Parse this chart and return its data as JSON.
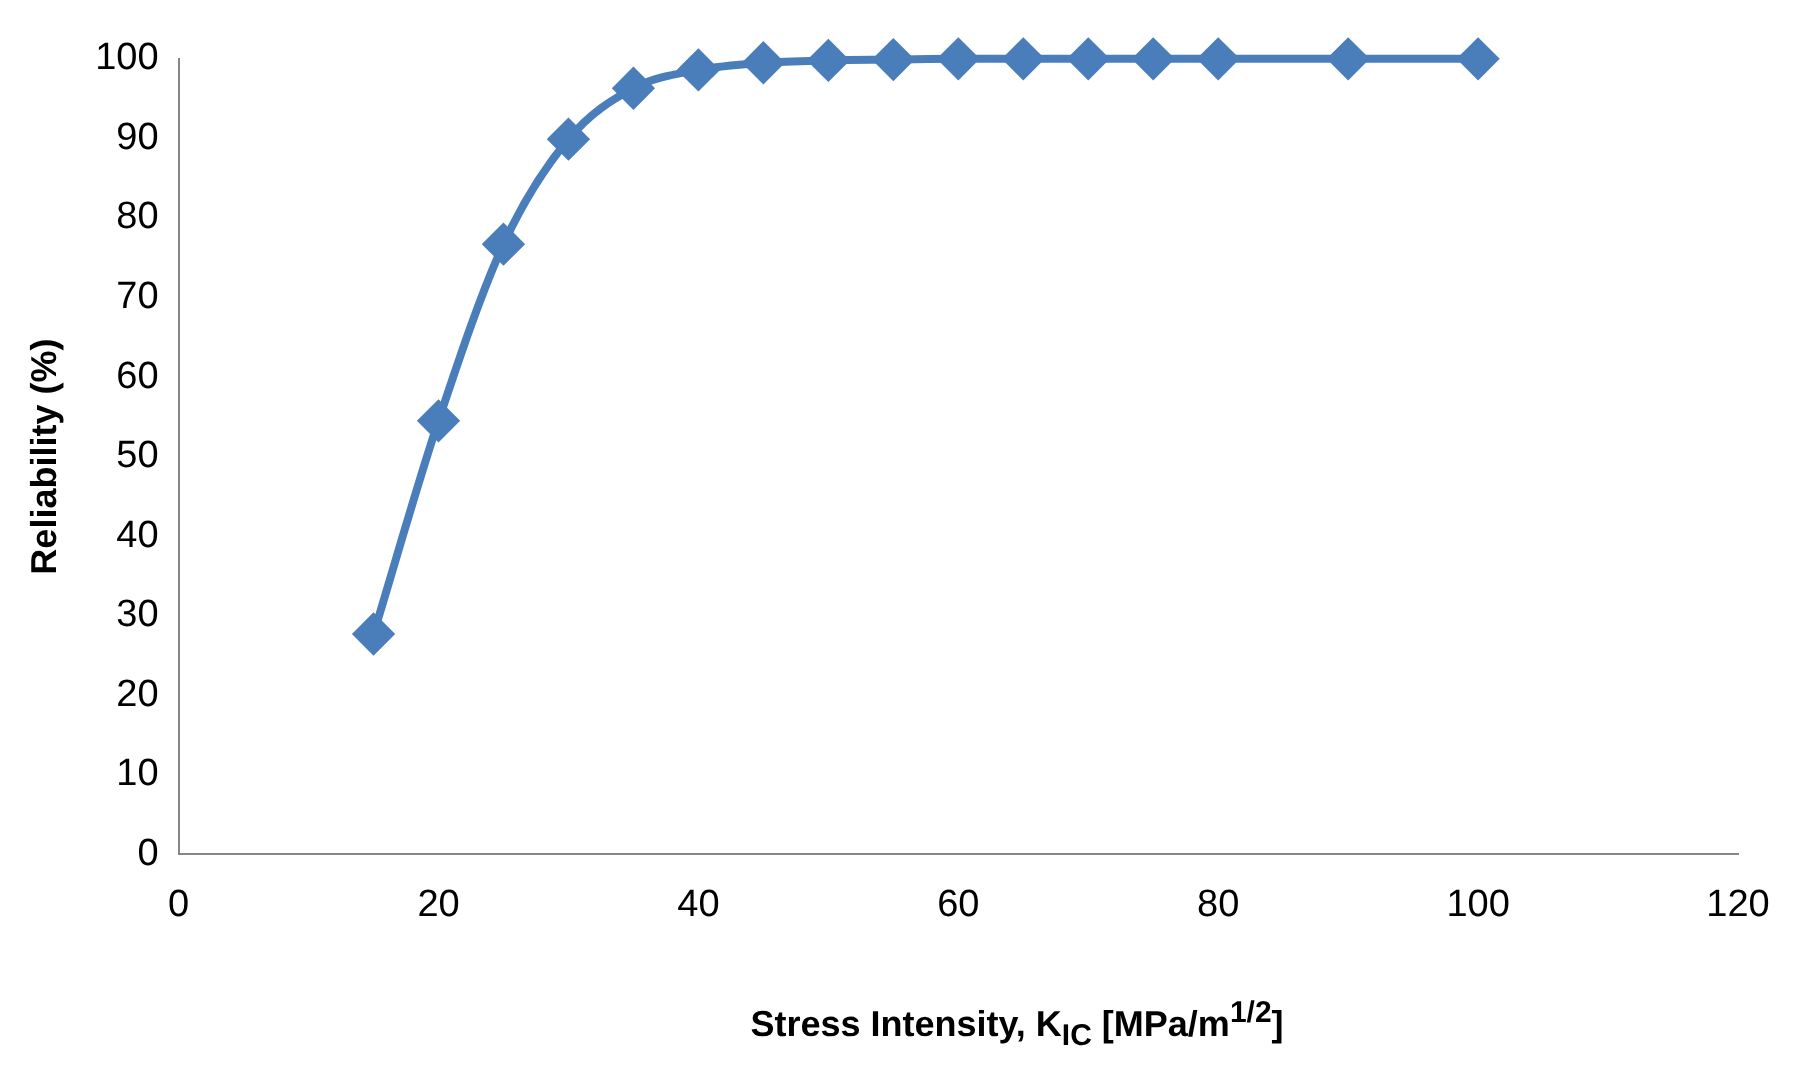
{
  "chart_data": {
    "type": "line",
    "xlabel": "Stress Intensity, K$_{IC}$ [MPa/m$^{1/2}$]",
    "ylabel": "Reliability (%)",
    "x": [
      15,
      20,
      25,
      30,
      35,
      40,
      45,
      50,
      55,
      60,
      65,
      70,
      75,
      80,
      90,
      100
    ],
    "series": [
      {
        "color": "#4a7ebb",
        "values": [
          27.7,
          54.5,
          76.7,
          89.9,
          96.3,
          98.6,
          99.5,
          99.8,
          99.9,
          100,
          100,
          100,
          100,
          100,
          100,
          100
        ]
      }
    ],
    "xlim": [
      0,
      120
    ],
    "xticks": [
      0,
      20,
      40,
      60,
      80,
      100,
      120
    ],
    "ylim": [
      0,
      100
    ],
    "yticks": [
      0,
      10,
      20,
      30,
      40,
      50,
      60,
      70,
      80,
      90,
      100
    ],
    "grid": false,
    "legend": false,
    "marker": "diamond",
    "line_style": "solid"
  }
}
